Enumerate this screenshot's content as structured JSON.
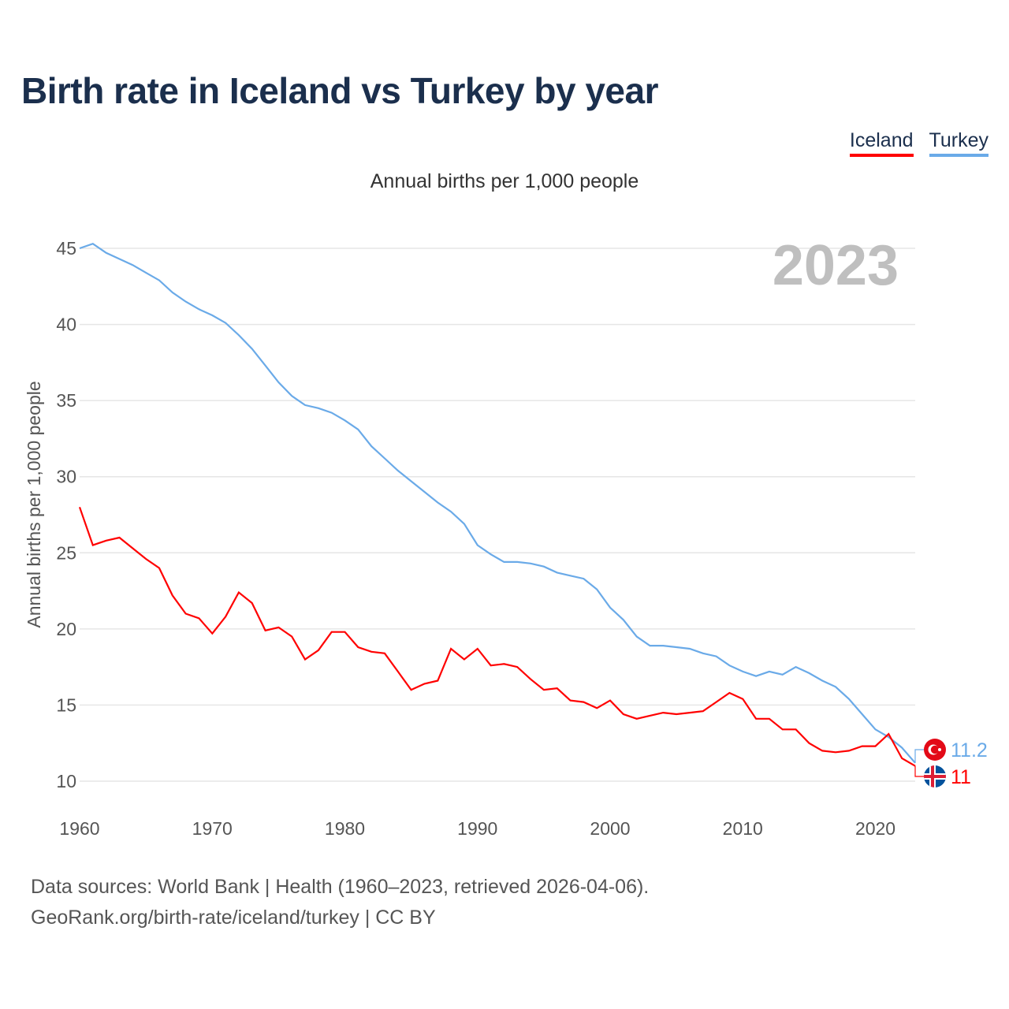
{
  "title": "Birth rate in Iceland vs Turkey by year",
  "legend": [
    {
      "label": "Iceland",
      "color": "#ff0000"
    },
    {
      "label": "Turkey",
      "color": "#6aaae8"
    }
  ],
  "source_line1": "Data sources: World Bank | Health (1960–2023, retrieved 2026-04-06).",
  "source_line2": "GeoRank.org/birth-rate/iceland/turkey | CC BY",
  "chart_data": {
    "type": "line",
    "title": "Birth rate in Iceland vs Turkey by year",
    "subtitle": "Annual births per 1,000 people",
    "ylabel": "Annual births per 1,000 people",
    "xlabel": "",
    "year_watermark": "2023",
    "xlim": [
      1960,
      2023
    ],
    "ylim": [
      8,
      45
    ],
    "xticks": [
      1960,
      1970,
      1980,
      1990,
      2000,
      2010,
      2020
    ],
    "yticks": [
      10,
      15,
      20,
      25,
      30,
      35,
      40,
      45
    ],
    "grid": true,
    "legend_position": "top-right",
    "x_start": 1960,
    "series": [
      {
        "name": "Iceland",
        "color": "#ff0000",
        "end_label": "11",
        "values": [
          28.0,
          25.5,
          25.8,
          26.0,
          25.3,
          24.6,
          24.0,
          22.2,
          21.0,
          20.7,
          19.7,
          20.8,
          22.4,
          21.7,
          19.9,
          20.1,
          19.5,
          18.0,
          18.6,
          19.8,
          19.8,
          18.8,
          18.5,
          18.4,
          17.2,
          16.0,
          16.4,
          16.6,
          18.7,
          18.0,
          18.7,
          17.6,
          17.7,
          17.5,
          16.7,
          16.0,
          16.1,
          15.3,
          15.2,
          14.8,
          15.3,
          14.4,
          14.1,
          14.3,
          14.5,
          14.4,
          14.5,
          14.6,
          15.2,
          15.8,
          15.4,
          14.1,
          14.1,
          13.4,
          13.4,
          12.5,
          12.0,
          11.9,
          12.0,
          12.3,
          12.3,
          13.1,
          11.5,
          11.0
        ]
      },
      {
        "name": "Turkey",
        "color": "#6aaae8",
        "end_label": "11.2",
        "values": [
          45.0,
          45.3,
          44.7,
          44.3,
          43.9,
          43.4,
          42.9,
          42.1,
          41.5,
          41.0,
          40.6,
          40.1,
          39.3,
          38.4,
          37.3,
          36.2,
          35.3,
          34.7,
          34.5,
          34.2,
          33.7,
          33.1,
          32.0,
          31.2,
          30.4,
          29.7,
          29.0,
          28.3,
          27.7,
          26.9,
          25.5,
          24.9,
          24.4,
          24.4,
          24.3,
          24.1,
          23.7,
          23.5,
          23.3,
          22.6,
          21.4,
          20.6,
          19.5,
          18.9,
          18.9,
          18.8,
          18.7,
          18.4,
          18.2,
          17.6,
          17.2,
          16.9,
          17.2,
          17.0,
          17.5,
          17.1,
          16.6,
          16.2,
          15.4,
          14.4,
          13.4,
          12.9,
          12.2,
          11.2
        ]
      }
    ]
  }
}
